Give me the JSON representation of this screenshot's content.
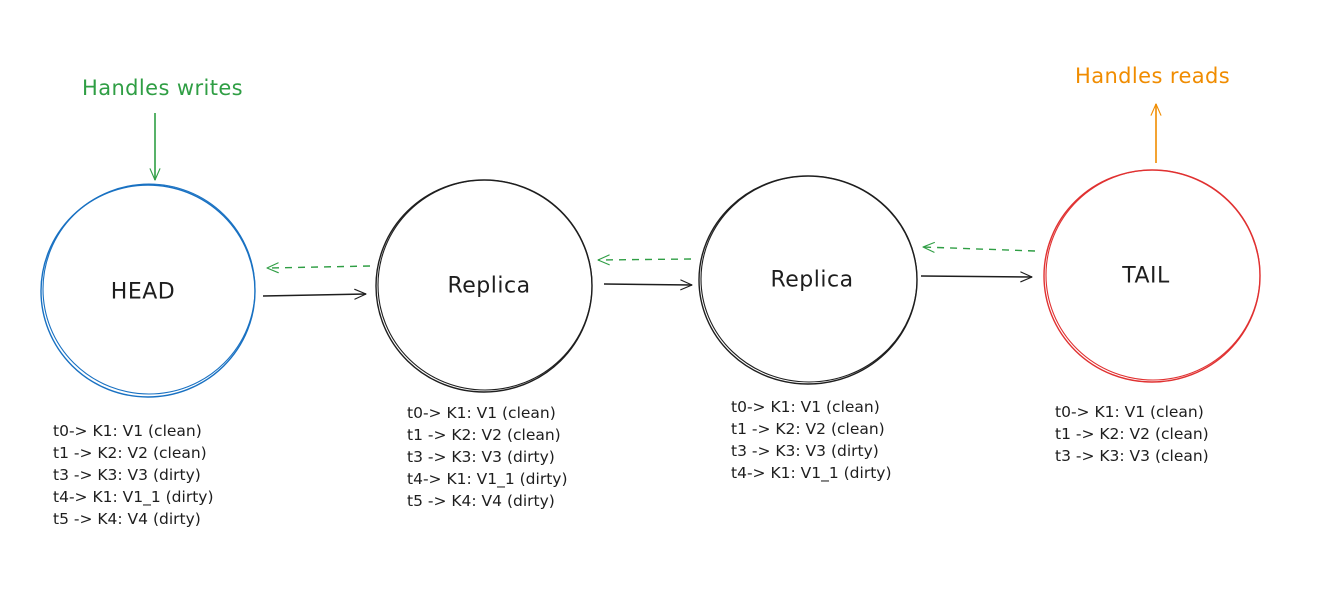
{
  "colors": {
    "head": "#1971c2",
    "replica": "#1e1e1e",
    "tail": "#e03131",
    "writes": "#2f9e44",
    "reads": "#f08c00",
    "ack": "#2f9e44",
    "forward": "#1e1e1e"
  },
  "nodes": [
    {
      "id": "head",
      "label": "HEAD",
      "log": [
        "t0-> K1: V1 (clean)",
        "t1 -> K2: V2 (clean)",
        "t3 -> K3: V3 (dirty)",
        "t4-> K1: V1_1 (dirty)",
        "t5 -> K4: V4 (dirty)"
      ]
    },
    {
      "id": "replica-1",
      "label": "Replica",
      "log": [
        "t0-> K1: V1 (clean)",
        "t1 -> K2: V2 (clean)",
        "t3 -> K3: V3 (dirty)",
        "t4-> K1: V1_1 (dirty)",
        "t5 -> K4: V4 (dirty)"
      ]
    },
    {
      "id": "replica-2",
      "label": "Replica",
      "log": [
        "t0-> K1: V1 (clean)",
        "t1 -> K2: V2 (clean)",
        "t3 -> K3: V3 (dirty)",
        "t4-> K1: V1_1 (dirty)"
      ]
    },
    {
      "id": "tail",
      "label": "TAIL",
      "log": [
        "t0-> K1: V1 (clean)",
        "t1 -> K2: V2 (clean)",
        "t3 -> K3: V3 (clean)"
      ]
    }
  ],
  "captions": {
    "writes": "Handles writes",
    "reads": "Handles reads"
  }
}
